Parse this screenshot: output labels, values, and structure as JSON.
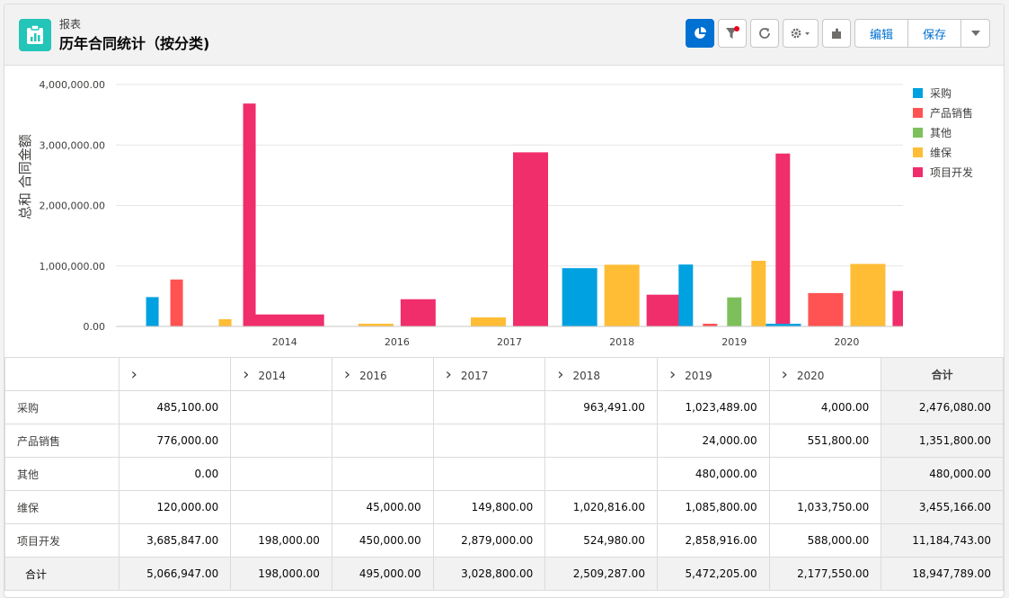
{
  "header": {
    "breadcrumb": "报表",
    "title": "历年合同统计（按分类)",
    "buttons": {
      "edit_label": "编辑",
      "save_label": "保存"
    }
  },
  "colors": {
    "accent": "#0070d2",
    "app_icon": "#22c5b8",
    "series": [
      "#00a1e0",
      "#ff5353",
      "#7dc05b",
      "#ffbd36",
      "#f02e6b"
    ]
  },
  "chart_data": {
    "type": "bar",
    "ylabel": "总和 合同金额",
    "ylim": [
      0,
      4000000
    ],
    "yticks": [
      "0.00",
      "1,000,000.00",
      "2,000,000.00",
      "3,000,000.00",
      "4,000,000.00"
    ],
    "categories": [
      "",
      "2014",
      "2016",
      "2017",
      "2018",
      "2019",
      "2020"
    ],
    "series": [
      {
        "name": "采购",
        "values": [
          485100,
          0,
          0,
          0,
          963491,
          1023489,
          4000
        ]
      },
      {
        "name": "产品销售",
        "values": [
          776000,
          0,
          0,
          0,
          0,
          24000,
          551800
        ]
      },
      {
        "name": "其他",
        "values": [
          0,
          0,
          0,
          0,
          0,
          480000,
          0
        ]
      },
      {
        "name": "维保",
        "values": [
          120000,
          0,
          45000,
          149800,
          1020816,
          1085800,
          1033750
        ]
      },
      {
        "name": "项目开发",
        "values": [
          3685847,
          198000,
          450000,
          2879000,
          524980,
          2858916,
          588000
        ]
      }
    ],
    "legend_position": "right",
    "grid": true
  },
  "table": {
    "columns": [
      "",
      "2014",
      "2016",
      "2017",
      "2018",
      "2019",
      "2020"
    ],
    "total_header": "合计",
    "rows": [
      {
        "label": "采购",
        "cells": [
          "485,100.00",
          "",
          "",
          "",
          "963,491.00",
          "1,023,489.00",
          "4,000.00"
        ],
        "total": "2,476,080.00"
      },
      {
        "label": "产品销售",
        "cells": [
          "776,000.00",
          "",
          "",
          "",
          "",
          "24,000.00",
          "551,800.00"
        ],
        "total": "1,351,800.00"
      },
      {
        "label": "其他",
        "cells": [
          "0.00",
          "",
          "",
          "",
          "",
          "480,000.00",
          ""
        ],
        "total": "480,000.00"
      },
      {
        "label": "维保",
        "cells": [
          "120,000.00",
          "",
          "45,000.00",
          "149,800.00",
          "1,020,816.00",
          "1,085,800.00",
          "1,033,750.00"
        ],
        "total": "3,455,166.00"
      },
      {
        "label": "项目开发",
        "cells": [
          "3,685,847.00",
          "198,000.00",
          "450,000.00",
          "2,879,000.00",
          "524,980.00",
          "2,858,916.00",
          "588,000.00"
        ],
        "total": "11,184,743.00"
      }
    ],
    "total_row": {
      "label": "合计",
      "cells": [
        "5,066,947.00",
        "198,000.00",
        "495,000.00",
        "3,028,800.00",
        "2,509,287.00",
        "5,472,205.00",
        "2,177,550.00"
      ],
      "total": "18,947,789.00"
    }
  }
}
